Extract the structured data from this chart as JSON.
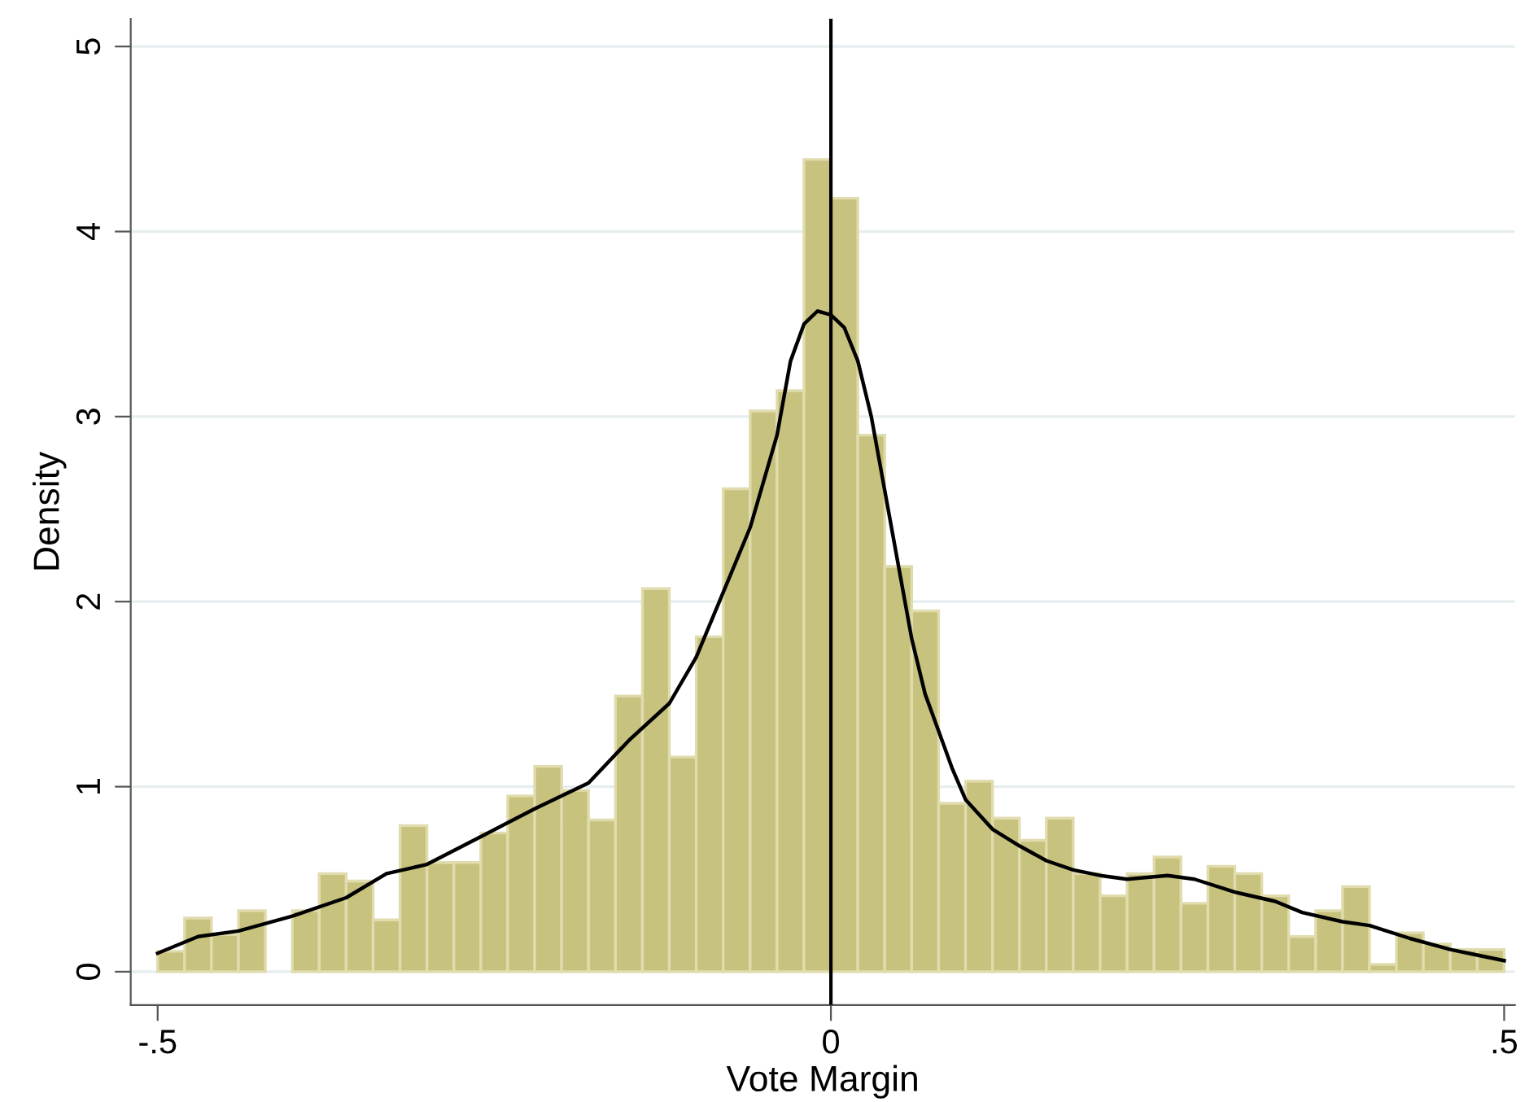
{
  "chart_data": {
    "type": "histogram",
    "xlabel": "Vote Margin",
    "ylabel": "Density",
    "bins": [
      -0.5,
      -0.48,
      -0.46,
      -0.44,
      -0.42,
      -0.4,
      -0.38,
      -0.36,
      -0.34,
      -0.32,
      -0.3,
      -0.28,
      -0.26,
      -0.24,
      -0.22,
      -0.2,
      -0.18,
      -0.16,
      -0.14,
      -0.12,
      -0.1,
      -0.08,
      -0.06,
      -0.04,
      -0.02,
      0,
      0.02,
      0.04,
      0.06,
      0.08,
      0.1,
      0.12,
      0.14,
      0.16,
      0.18,
      0.2,
      0.22,
      0.24,
      0.26,
      0.28,
      0.3,
      0.32,
      0.34,
      0.36,
      0.38,
      0.4,
      0.42,
      0.44,
      0.46,
      0.48,
      0.5
    ],
    "series": [
      {
        "color": "#c8c27f",
        "values": [
          0.11,
          0.29,
          0.2,
          0.33,
          0,
          0.33,
          0.53,
          0.49,
          0.28,
          0.79,
          0.59,
          0.59,
          0.75,
          0.95,
          1.11,
          0.98,
          0.82,
          1.49,
          2.07,
          1.16,
          1.81,
          2.61,
          3.03,
          3.14,
          4.39,
          4.18,
          2.9,
          2.19,
          1.95,
          0.91,
          1.03,
          0.83,
          0.71,
          0.83,
          0.53,
          0.41,
          0.53,
          0.62,
          0.37,
          0.57,
          0.53,
          0.41,
          0.19,
          0.33,
          0.46,
          0.04,
          0.21,
          0.15,
          0.12,
          0.12
        ]
      },
      {
        "type": "line",
        "color": "#000000",
        "x": [
          -0.5,
          -0.47,
          -0.44,
          -0.4,
          -0.36,
          -0.33,
          -0.3,
          -0.26,
          -0.22,
          -0.18,
          -0.15,
          -0.12,
          -0.1,
          -0.08,
          -0.06,
          -0.04,
          -0.03,
          -0.02,
          -0.01,
          0,
          0.01,
          0.02,
          0.03,
          0.04,
          0.05,
          0.06,
          0.07,
          0.08,
          0.09,
          0.1,
          0.12,
          0.14,
          0.16,
          0.18,
          0.2,
          0.22,
          0.25,
          0.27,
          0.3,
          0.33,
          0.35,
          0.38,
          0.4,
          0.43,
          0.46,
          0.48,
          0.5
        ],
        "values": [
          0.1,
          0.19,
          0.22,
          0.3,
          0.4,
          0.53,
          0.58,
          0.73,
          0.88,
          1.02,
          1.25,
          1.45,
          1.7,
          2.05,
          2.4,
          2.9,
          3.3,
          3.5,
          3.57,
          3.55,
          3.48,
          3.3,
          3.0,
          2.6,
          2.2,
          1.8,
          1.5,
          1.3,
          1.1,
          0.93,
          0.77,
          0.68,
          0.6,
          0.55,
          0.52,
          0.5,
          0.52,
          0.5,
          0.43,
          0.38,
          0.32,
          0.27,
          0.25,
          0.18,
          0.12,
          0.09,
          0.06
        ]
      }
    ],
    "ref_lines": [
      {
        "axis": "x",
        "value": 0,
        "color": "#000000"
      }
    ],
    "xlim": [
      -0.52,
      0.508
    ],
    "ylim": [
      -0.18,
      5.15
    ],
    "xticks": [
      {
        "value": -0.5,
        "label": "-.5"
      },
      0,
      {
        "value": 0.5,
        "label": ".5"
      }
    ],
    "yticks": [
      0,
      1,
      2,
      3,
      4,
      5
    ],
    "grid": "y",
    "legend": false
  }
}
